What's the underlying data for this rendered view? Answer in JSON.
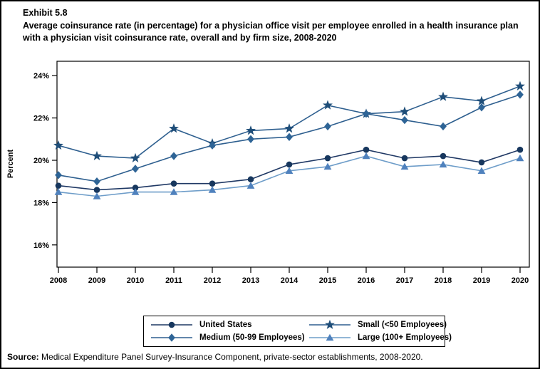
{
  "exhibit": {
    "number": "Exhibit 5.8",
    "title": "Average coinsurance rate (in percentage) for a physician office visit per employee enrolled in a health insurance plan with a physician visit coinsurance rate, overall and by firm size, 2008-2020",
    "source_label": "Source:",
    "source_text": " Medical Expenditure Panel Survey-Insurance Component, private-sector establishments, 2008-2020."
  },
  "chart_data": {
    "type": "line",
    "title": "Average coinsurance rate (in percentage) for a physician office visit per employee enrolled in a health insurance plan with a physician visit coinsurance rate, overall and by firm size, 2008-2020",
    "xlabel": "",
    "ylabel": "Percent",
    "ylim": [
      15.3,
      24.7
    ],
    "yticks": [
      16,
      18,
      20,
      22,
      24
    ],
    "ytick_labels": [
      "16%",
      "18%",
      "20%",
      "22%",
      "24%"
    ],
    "grid": false,
    "legend_position": "bottom",
    "x": [
      "2008",
      "2009",
      "2010",
      "2011",
      "2012",
      "2013",
      "2014",
      "2015",
      "2016",
      "2017",
      "2018",
      "2019",
      "2020"
    ],
    "series": [
      {
        "name": "United States",
        "marker": "circle",
        "color": "#17375E",
        "line_color": "#1F3864",
        "values": [
          18.8,
          18.6,
          18.7,
          18.9,
          18.9,
          19.1,
          19.8,
          20.1,
          20.5,
          20.1,
          20.2,
          19.9,
          20.5
        ]
      },
      {
        "name": "Small (<50 Employees)",
        "marker": "star",
        "color": "#1F4E79",
        "line_color": "#2E5F8F",
        "values": [
          20.7,
          20.2,
          20.1,
          21.5,
          20.8,
          21.4,
          21.5,
          22.6,
          22.2,
          22.3,
          23.0,
          22.8,
          23.5
        ]
      },
      {
        "name": "Medium (50-99 Employees)",
        "marker": "diamond",
        "color": "#2E6496",
        "line_color": "#2E5F8F",
        "values": [
          19.3,
          19.0,
          19.6,
          20.2,
          20.7,
          21.0,
          21.1,
          21.6,
          22.2,
          21.9,
          21.6,
          22.5,
          23.1
        ]
      },
      {
        "name": "Large (100+ Employees)",
        "marker": "triangle",
        "color": "#4F81BD",
        "line_color": "#6E9DC9",
        "values": [
          18.5,
          18.3,
          18.5,
          18.5,
          18.6,
          18.8,
          19.5,
          19.7,
          20.2,
          19.7,
          19.8,
          19.5,
          20.1
        ]
      }
    ]
  }
}
